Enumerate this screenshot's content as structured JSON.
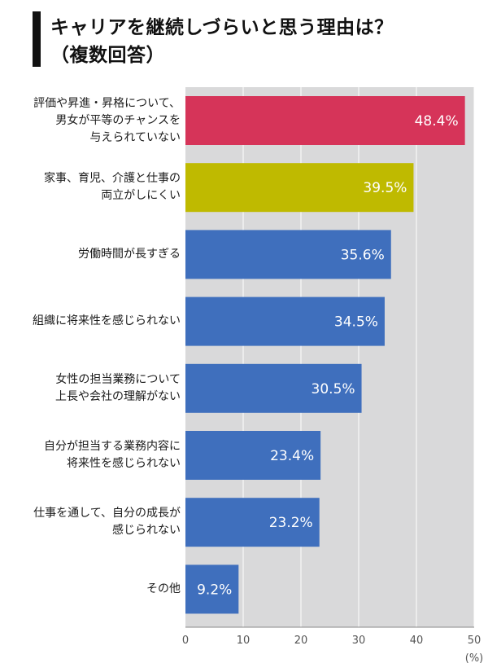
{
  "title": {
    "line1": "キャリアを継続しづらいと思う理由は？",
    "line2": "（複数回答）"
  },
  "chart_data": {
    "type": "bar",
    "orientation": "horizontal",
    "title": "キャリアを継続しづらいと思う理由は？（複数回答）",
    "categories": [
      [
        "評価や昇進・昇格について、",
        "男女が平等のチャンスを",
        "与えられていない"
      ],
      [
        "家事、育児、介護と仕事の",
        "両立がしにくい"
      ],
      [
        "労働時間が長すぎる"
      ],
      [
        "組織に将来性を感じられない"
      ],
      [
        "女性の担当業務について",
        "上長や会社の理解がない"
      ],
      [
        "自分が担当する業務内容に",
        "将来性を感じられない"
      ],
      [
        "仕事を通して、自分の成長が",
        "感じられない"
      ],
      [
        "その他"
      ]
    ],
    "values": [
      48.4,
      39.5,
      35.6,
      34.5,
      30.5,
      23.4,
      23.2,
      9.2
    ],
    "value_labels": [
      "48.4%",
      "39.5%",
      "35.6%",
      "34.5%",
      "30.5%",
      "23.4%",
      "23.2%",
      "9.2%"
    ],
    "bar_colors": [
      "#d63459",
      "#bfba00",
      "#3f6fbd",
      "#3f6fbd",
      "#3f6fbd",
      "#3f6fbd",
      "#3f6fbd",
      "#3f6fbd"
    ],
    "background_color": "#d9d9da",
    "x_ticks": [
      "0",
      "10",
      "20",
      "30",
      "40",
      "50"
    ],
    "xlim": [
      0,
      50
    ],
    "x_unit": "(%)",
    "grid": true
  }
}
